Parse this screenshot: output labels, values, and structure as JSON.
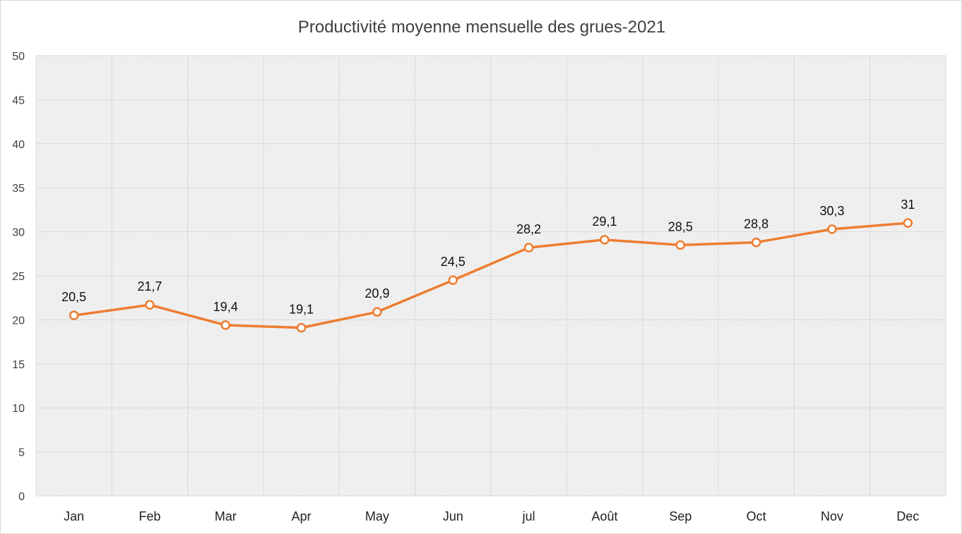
{
  "chart_data": {
    "type": "line",
    "title": "Productivité moyenne mensuelle des grues-2021",
    "xlabel": "",
    "ylabel": "",
    "categories": [
      "Jan",
      "Feb",
      "Mar",
      "Apr",
      "May",
      "Jun",
      "jul",
      "Août",
      "Sep",
      "Oct",
      "Nov",
      "Dec"
    ],
    "series": [
      {
        "values": [
          20.5,
          21.7,
          19.4,
          19.1,
          20.9,
          24.5,
          28.2,
          29.1,
          28.5,
          28.8,
          30.3,
          31
        ],
        "labels": [
          "20,5",
          "21,7",
          "19,4",
          "19,1",
          "20,9",
          "24,5",
          "28,2",
          "29,1",
          "28,5",
          "28,8",
          "30,3",
          "31"
        ],
        "color": "#ED7D31"
      }
    ],
    "ylim": [
      0,
      50
    ],
    "yticks": [
      "0",
      "5",
      "10",
      "15",
      "20",
      "25",
      "30",
      "35",
      "40",
      "45",
      "50"
    ],
    "grid": true,
    "legend": "none",
    "plot_background": "hatched light gray"
  }
}
